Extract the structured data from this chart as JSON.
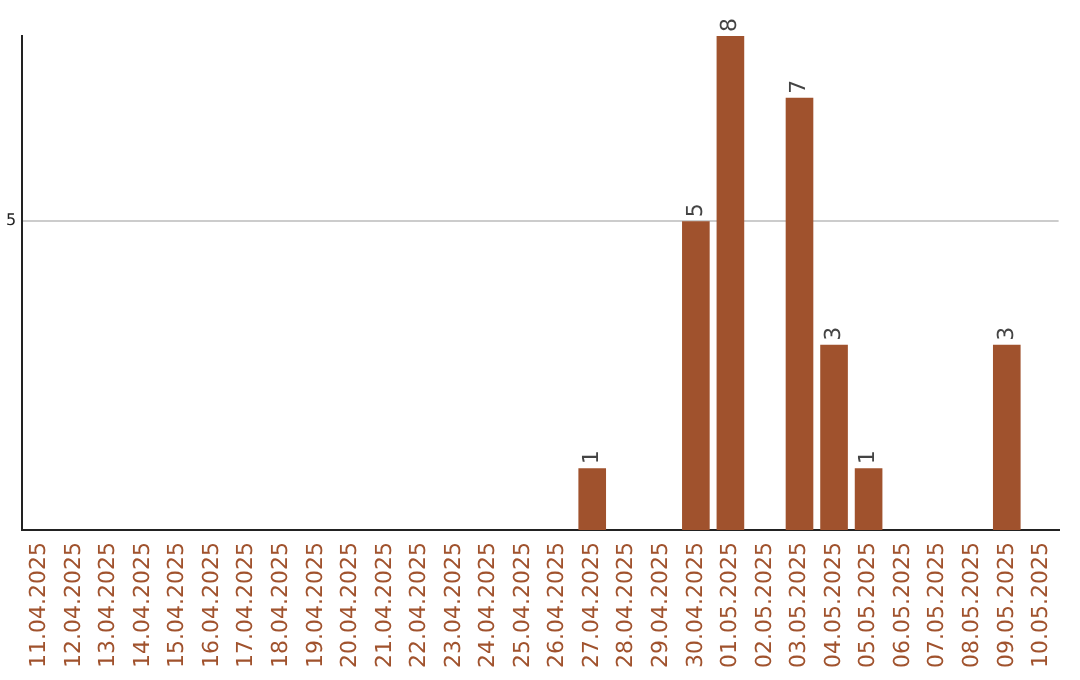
{
  "chart_data": {
    "type": "bar",
    "categories": [
      "11.04.2025",
      "12.04.2025",
      "13.04.2025",
      "14.04.2025",
      "15.04.2025",
      "16.04.2025",
      "17.04.2025",
      "18.04.2025",
      "19.04.2025",
      "20.04.2025",
      "21.04.2025",
      "22.04.2025",
      "23.04.2025",
      "24.04.2025",
      "25.04.2025",
      "26.04.2025",
      "27.04.2025",
      "28.04.2025",
      "29.04.2025",
      "30.04.2025",
      "01.05.2025",
      "02.05.2025",
      "03.05.2025",
      "04.05.2025",
      "05.05.2025",
      "06.05.2025",
      "07.05.2025",
      "08.05.2025",
      "09.05.2025",
      "10.05.2025"
    ],
    "series": [
      {
        "color": "#a0522d",
        "values": [
          null,
          null,
          null,
          null,
          null,
          null,
          null,
          null,
          null,
          null,
          null,
          null,
          null,
          null,
          null,
          null,
          1,
          null,
          null,
          5,
          8,
          null,
          7,
          3,
          1,
          null,
          null,
          null,
          3,
          null
        ]
      }
    ],
    "ylim": [
      0,
      8
    ],
    "yticks": [
      5
    ],
    "grid": "y",
    "legend": false,
    "data_labels": true
  }
}
